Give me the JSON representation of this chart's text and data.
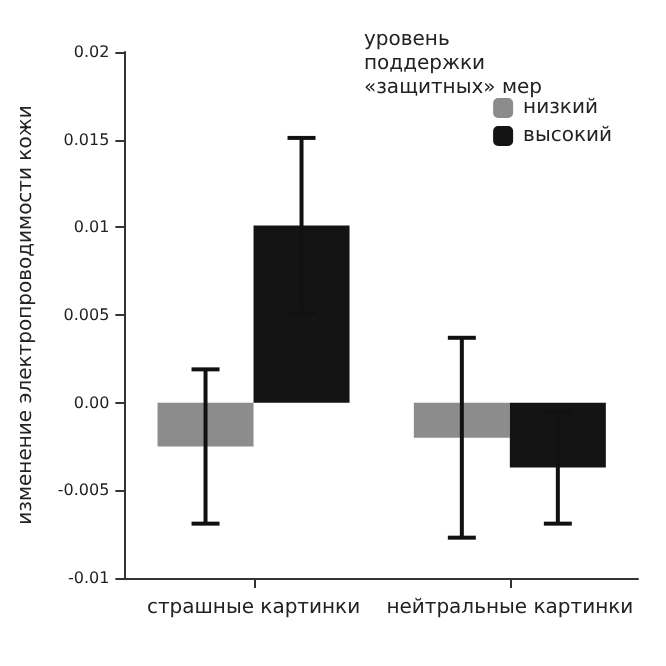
{
  "chart_data": {
    "type": "bar",
    "ylabel": "изменение электропроводимости кожи",
    "legend_title": "уровень поддержки «защитных» мер",
    "categories": [
      "страшные картинки",
      "нейтральные картинки"
    ],
    "series": [
      {
        "name": "низкий",
        "color": "#8c8c8c",
        "values": [
          -0.0025,
          -0.002
        ],
        "errors": [
          0.0044,
          0.0057
        ]
      },
      {
        "name": "высокий",
        "color": "#141414",
        "values": [
          0.0101,
          -0.0037
        ],
        "errors": [
          0.005,
          0.0032
        ]
      }
    ],
    "ylim": [
      -0.01,
      0.02
    ],
    "yticks": [
      {
        "value": -0.01,
        "label": "-0.01"
      },
      {
        "value": -0.005,
        "label": "-0.005"
      },
      {
        "value": 0,
        "label": "0.00"
      },
      0.005,
      0.01,
      0.015,
      0.02
    ],
    "grid": false,
    "legend": "top right"
  }
}
